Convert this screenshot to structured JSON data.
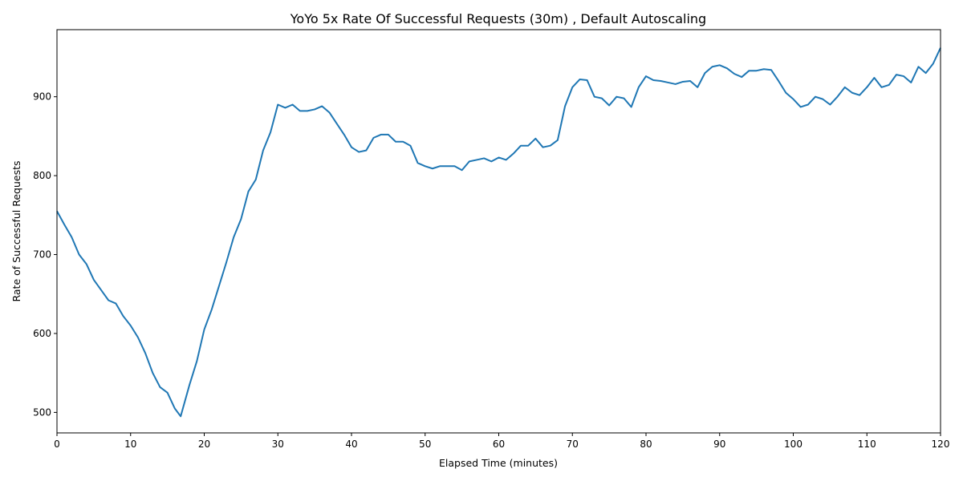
{
  "chart_data": {
    "type": "line",
    "title": "YoYo 5x Rate Of Successful Requests (30m) , Default Autoscaling",
    "xlabel": "Elapsed Time (minutes)",
    "ylabel": "Rate of Successful Requests",
    "xlim": [
      0,
      120
    ],
    "ylim": [
      474,
      985
    ],
    "x_ticks": [
      0,
      10,
      20,
      30,
      40,
      50,
      60,
      70,
      80,
      90,
      100,
      110,
      120
    ],
    "y_ticks": [
      500,
      600,
      700,
      800,
      900
    ],
    "grid": false,
    "legend": "none",
    "series": [
      {
        "color": "#1f77b4",
        "x": [
          0,
          1,
          2,
          3,
          4,
          5,
          6,
          7,
          8,
          9,
          10,
          11,
          12,
          13,
          14,
          15,
          16,
          16.8,
          18,
          19,
          20,
          21,
          22,
          23,
          24,
          25,
          26,
          27,
          28,
          29,
          30,
          31,
          32,
          33,
          34,
          35,
          36,
          37,
          38,
          39,
          40,
          41,
          42,
          43,
          44,
          45,
          46,
          47,
          48,
          49,
          50,
          51,
          52,
          53,
          54,
          55,
          56,
          57,
          58,
          59,
          60,
          61,
          62,
          63,
          64,
          65,
          66,
          67,
          68,
          69,
          70,
          71,
          72,
          73,
          74,
          75,
          76,
          77,
          78,
          79,
          80,
          81,
          82,
          83,
          84,
          85,
          86,
          87,
          88,
          89,
          90,
          91,
          92,
          93,
          94,
          95,
          96,
          97,
          98,
          99,
          100,
          101,
          102,
          103,
          104,
          105,
          106,
          107,
          108,
          109,
          110,
          111,
          112,
          113,
          114,
          115,
          116,
          117,
          118,
          119,
          120
        ],
        "values": [
          755,
          738,
          722,
          700,
          688,
          668,
          655,
          642,
          638,
          622,
          610,
          595,
          575,
          550,
          532,
          525,
          505,
          495,
          535,
          565,
          605,
          630,
          660,
          690,
          722,
          745,
          780,
          795,
          832,
          855,
          890,
          886,
          890,
          882,
          882,
          884,
          888,
          880,
          866,
          852,
          836,
          830,
          832,
          848,
          852,
          852,
          843,
          843,
          838,
          816,
          812,
          809,
          812,
          812,
          812,
          807,
          818,
          820,
          822,
          818,
          823,
          820,
          828,
          838,
          838,
          847,
          836,
          838,
          845,
          888,
          912,
          922,
          921,
          900,
          898,
          889,
          900,
          898,
          887,
          912,
          926,
          921,
          920,
          918,
          916,
          919,
          920,
          912,
          930,
          938,
          940,
          936,
          929,
          925,
          933,
          933,
          935,
          934,
          920,
          905,
          897,
          887,
          890,
          900,
          897,
          890,
          900,
          912,
          905,
          902,
          912,
          924,
          912,
          915,
          928,
          926,
          918,
          938,
          930,
          942,
          962
        ]
      }
    ]
  }
}
